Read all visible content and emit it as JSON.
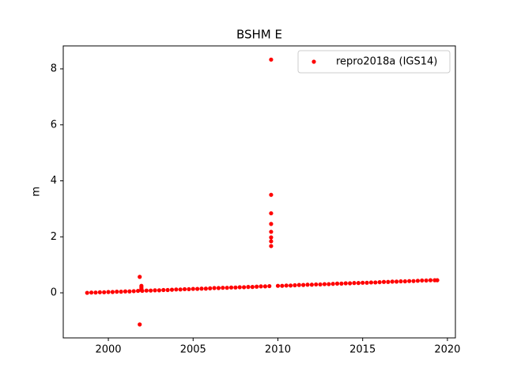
{
  "chart_data": {
    "type": "scatter",
    "title": "BSHM E",
    "ylabel": "m",
    "xlim": [
      1997.34,
      2020.47
    ],
    "ylim": [
      -1.61,
      8.82
    ],
    "xticks": [
      2000,
      2005,
      2010,
      2015,
      2020
    ],
    "yticks": [
      0,
      2,
      4,
      6,
      8
    ],
    "legend": "upper right",
    "series": [
      {
        "name": "repro2018a (IGS14)",
        "color": "#ff0000",
        "x": [
          1998.75,
          1999.0,
          1999.25,
          1999.5,
          1999.75,
          2000.0,
          2000.25,
          2000.5,
          2000.75,
          2001.0,
          2001.25,
          2001.5,
          2001.75,
          2002.0,
          2002.25,
          2002.5,
          2002.75,
          2003.0,
          2003.25,
          2003.5,
          2003.75,
          2004.0,
          2004.25,
          2004.5,
          2004.75,
          2005.0,
          2005.25,
          2005.5,
          2005.75,
          2006.0,
          2006.25,
          2006.5,
          2006.75,
          2007.0,
          2007.25,
          2007.5,
          2007.75,
          2008.0,
          2008.25,
          2008.5,
          2008.75,
          2009.0,
          2009.25,
          2009.5,
          2010.0,
          2010.25,
          2010.5,
          2010.75,
          2011.0,
          2011.25,
          2011.5,
          2011.75,
          2012.0,
          2012.25,
          2012.5,
          2012.75,
          2013.0,
          2013.25,
          2013.5,
          2013.75,
          2014.0,
          2014.25,
          2014.5,
          2014.75,
          2015.0,
          2015.25,
          2015.5,
          2015.75,
          2016.0,
          2016.25,
          2016.5,
          2016.75,
          2017.0,
          2017.25,
          2017.5,
          2017.75,
          2018.0,
          2018.25,
          2018.5,
          2018.75,
          2019.0,
          2019.25,
          2019.4,
          2001.85,
          2001.85,
          2001.95,
          2001.95,
          2001.95,
          2001.95,
          2009.6,
          2009.6,
          2009.6,
          2009.6,
          2009.6,
          2009.6,
          2009.6,
          2009.6
        ],
        "values": [
          0.0,
          0.01,
          0.01,
          0.02,
          0.02,
          0.03,
          0.03,
          0.04,
          0.04,
          0.05,
          0.05,
          0.06,
          0.07,
          0.07,
          0.08,
          0.08,
          0.09,
          0.09,
          0.1,
          0.1,
          0.11,
          0.12,
          0.12,
          0.13,
          0.13,
          0.14,
          0.14,
          0.15,
          0.15,
          0.16,
          0.17,
          0.17,
          0.18,
          0.18,
          0.19,
          0.19,
          0.2,
          0.2,
          0.21,
          0.21,
          0.22,
          0.23,
          0.23,
          0.24,
          0.25,
          0.25,
          0.26,
          0.26,
          0.27,
          0.28,
          0.28,
          0.29,
          0.29,
          0.3,
          0.3,
          0.31,
          0.31,
          0.32,
          0.33,
          0.33,
          0.34,
          0.34,
          0.35,
          0.35,
          0.36,
          0.36,
          0.37,
          0.37,
          0.38,
          0.39,
          0.39,
          0.4,
          0.4,
          0.41,
          0.41,
          0.42,
          0.42,
          0.43,
          0.44,
          0.44,
          0.45,
          0.45,
          0.45,
          0.57,
          -1.13,
          0.25,
          0.2,
          0.15,
          0.1,
          8.33,
          3.5,
          2.84,
          2.46,
          2.18,
          1.98,
          1.84,
          1.67
        ]
      }
    ]
  }
}
